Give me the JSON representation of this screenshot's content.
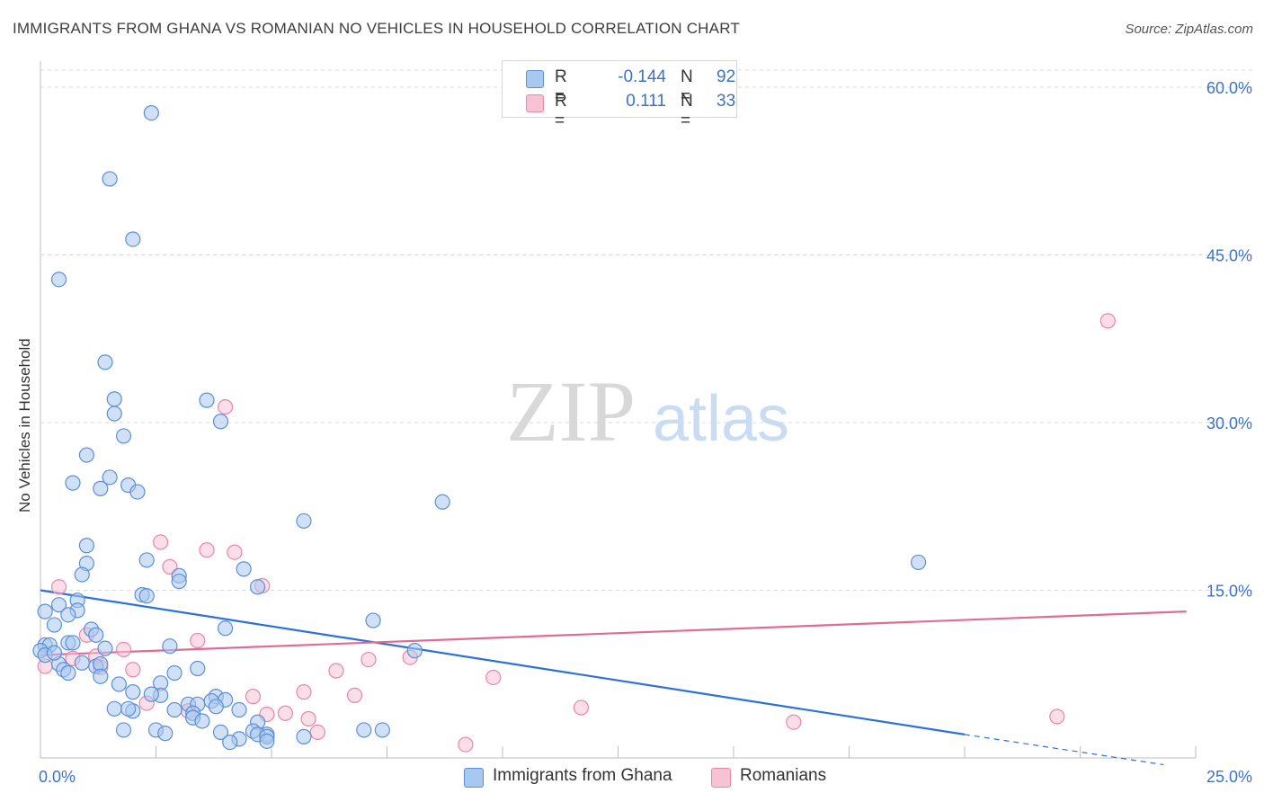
{
  "title": "IMMIGRANTS FROM GHANA VS ROMANIAN NO VEHICLES IN HOUSEHOLD CORRELATION CHART",
  "source": "Source: ZipAtlas.com",
  "watermark": {
    "zip": "ZIP",
    "atlas": "atlas"
  },
  "legend": {
    "r_label": "R =",
    "n_label": "N =",
    "rows": [
      {
        "name": "Immigrants from Ghana",
        "r": "-0.144",
        "n": "92",
        "color": "#a9c8f0"
      },
      {
        "name": "Romanians",
        "r": "0.111",
        "n": "33",
        "color": "#f7b8cc"
      }
    ]
  },
  "bottom_legend": [
    "Immigrants from Ghana",
    "Romanians"
  ],
  "colors": {
    "blue_fill": "#a9c8f0",
    "blue_stroke": "#5b8fd6",
    "blue_line": "#2c72d6",
    "pink_fill": "#f7c3d3",
    "pink_stroke": "#e887a7",
    "pink_line": "#e06b97",
    "grid": "#d9d9d9",
    "tick_text": "#3b73c8"
  },
  "chart_data": {
    "type": "scatter",
    "title": "IMMIGRANTS FROM GHANA VS ROMANIAN NO VEHICLES IN HOUSEHOLD CORRELATION CHART",
    "xlabel": "",
    "ylabel": "No Vehicles in Household",
    "xlim": [
      0,
      25
    ],
    "ylim": [
      0,
      60
    ],
    "x_tick_labels": [
      "0.0%",
      "25.0%"
    ],
    "y_ticks": [
      15,
      30,
      45,
      60
    ],
    "y_tick_labels": [
      "15.0%",
      "30.0%",
      "45.0%",
      "60.0%"
    ],
    "series": [
      {
        "name": "Immigrants from Ghana",
        "points": [
          [
            2.4,
            57.7
          ],
          [
            1.5,
            51.8
          ],
          [
            2.0,
            46.4
          ],
          [
            0.4,
            42.8
          ],
          [
            1.4,
            35.4
          ],
          [
            1.6,
            32.1
          ],
          [
            3.6,
            32.0
          ],
          [
            1.6,
            30.8
          ],
          [
            3.9,
            30.1
          ],
          [
            1.8,
            28.8
          ],
          [
            1.0,
            27.1
          ],
          [
            0.7,
            24.6
          ],
          [
            1.5,
            25.1
          ],
          [
            1.9,
            24.4
          ],
          [
            1.3,
            24.1
          ],
          [
            2.1,
            23.8
          ],
          [
            8.7,
            22.9
          ],
          [
            5.7,
            21.2
          ],
          [
            1.0,
            19.0
          ],
          [
            2.3,
            17.7
          ],
          [
            19.0,
            17.5
          ],
          [
            1.0,
            17.4
          ],
          [
            4.4,
            16.9
          ],
          [
            0.9,
            16.4
          ],
          [
            3.0,
            16.3
          ],
          [
            3.0,
            15.8
          ],
          [
            4.7,
            15.3
          ],
          [
            2.2,
            14.6
          ],
          [
            2.3,
            14.5
          ],
          [
            0.8,
            14.1
          ],
          [
            0.4,
            13.7
          ],
          [
            0.1,
            13.1
          ],
          [
            0.8,
            13.2
          ],
          [
            0.6,
            12.8
          ],
          [
            0.3,
            11.9
          ],
          [
            7.2,
            12.3
          ],
          [
            4.0,
            11.6
          ],
          [
            1.1,
            11.5
          ],
          [
            1.2,
            11.0
          ],
          [
            0.1,
            10.1
          ],
          [
            0.2,
            10.1
          ],
          [
            0.6,
            10.3
          ],
          [
            0.7,
            10.3
          ],
          [
            2.8,
            10.0
          ],
          [
            1.4,
            9.8
          ],
          [
            0.0,
            9.6
          ],
          [
            0.1,
            9.2
          ],
          [
            8.1,
            9.6
          ],
          [
            0.4,
            8.4
          ],
          [
            0.9,
            8.5
          ],
          [
            1.2,
            8.2
          ],
          [
            1.3,
            8.4
          ],
          [
            3.4,
            8.0
          ],
          [
            0.5,
            7.9
          ],
          [
            0.6,
            7.6
          ],
          [
            2.9,
            7.6
          ],
          [
            1.3,
            7.3
          ],
          [
            2.6,
            6.7
          ],
          [
            1.7,
            6.6
          ],
          [
            2.0,
            5.9
          ],
          [
            3.8,
            5.5
          ],
          [
            2.6,
            5.6
          ],
          [
            2.4,
            5.7
          ],
          [
            4.0,
            5.2
          ],
          [
            3.7,
            5.1
          ],
          [
            3.2,
            4.8
          ],
          [
            3.4,
            4.8
          ],
          [
            3.8,
            4.6
          ],
          [
            1.6,
            4.4
          ],
          [
            2.0,
            4.2
          ],
          [
            1.9,
            4.4
          ],
          [
            2.9,
            4.3
          ],
          [
            4.3,
            4.3
          ],
          [
            3.3,
            4.0
          ],
          [
            3.3,
            3.6
          ],
          [
            3.5,
            3.3
          ],
          [
            4.7,
            3.2
          ],
          [
            1.8,
            2.5
          ],
          [
            2.5,
            2.5
          ],
          [
            2.7,
            2.2
          ],
          [
            4.6,
            2.4
          ],
          [
            4.9,
            2.1
          ],
          [
            7.0,
            2.5
          ],
          [
            7.4,
            2.5
          ],
          [
            4.7,
            2.1
          ],
          [
            4.9,
            1.9
          ],
          [
            3.9,
            2.3
          ],
          [
            4.3,
            1.7
          ],
          [
            5.7,
            1.9
          ],
          [
            4.1,
            1.4
          ],
          [
            4.9,
            1.5
          ],
          [
            0.3,
            9.4
          ]
        ],
        "trend": {
          "x": [
            0,
            20.0,
            24.3
          ],
          "y": [
            15.0,
            2.1,
            -0.6
          ]
        }
      },
      {
        "name": "Romanians",
        "points": [
          [
            0.1,
            8.2
          ],
          [
            0.4,
            15.3
          ],
          [
            4.0,
            31.4
          ],
          [
            2.6,
            19.3
          ],
          [
            3.6,
            18.6
          ],
          [
            4.2,
            18.4
          ],
          [
            2.8,
            17.1
          ],
          [
            4.8,
            15.4
          ],
          [
            1.0,
            11.0
          ],
          [
            3.4,
            10.5
          ],
          [
            1.8,
            9.7
          ],
          [
            1.2,
            9.1
          ],
          [
            8.0,
            9.0
          ],
          [
            0.7,
            8.9
          ],
          [
            1.3,
            8.1
          ],
          [
            2.0,
            7.9
          ],
          [
            7.1,
            8.8
          ],
          [
            6.4,
            7.8
          ],
          [
            9.8,
            7.2
          ],
          [
            6.8,
            5.6
          ],
          [
            5.7,
            5.9
          ],
          [
            4.6,
            5.5
          ],
          [
            2.3,
            4.9
          ],
          [
            3.2,
            4.2
          ],
          [
            5.3,
            4.0
          ],
          [
            4.9,
            3.9
          ],
          [
            5.8,
            3.5
          ],
          [
            6.0,
            2.3
          ],
          [
            11.7,
            4.5
          ],
          [
            16.3,
            3.2
          ],
          [
            22.0,
            3.7
          ],
          [
            23.1,
            39.1
          ],
          [
            9.2,
            1.2
          ]
        ],
        "trend": {
          "x": [
            0,
            24.8
          ],
          "y": [
            9.2,
            13.1
          ]
        }
      }
    ]
  }
}
